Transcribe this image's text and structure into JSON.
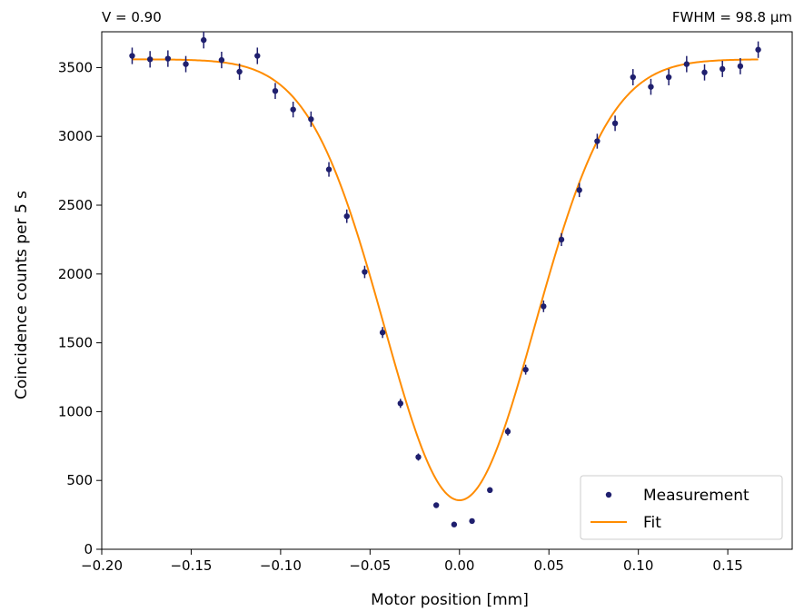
{
  "chart_data": {
    "type": "scatter",
    "title": "",
    "annotations": {
      "left": "V = 0.90",
      "right": "FWHM = 98.8 µm"
    },
    "xlabel": "Motor position [mm]",
    "ylabel": "Coincidence counts per 5 s",
    "xlim": [
      -0.2,
      0.186
    ],
    "ylim": [
      0,
      3760
    ],
    "xticks": [
      -0.2,
      -0.15,
      -0.1,
      -0.05,
      0.0,
      0.05,
      0.1,
      0.15
    ],
    "xtick_labels": [
      "−0.20",
      "−0.15",
      "−0.10",
      "−0.05",
      "0.00",
      "0.05",
      "0.10",
      "0.15"
    ],
    "yticks": [
      0,
      500,
      1000,
      1500,
      2000,
      2500,
      3000,
      3500
    ],
    "ytick_labels": [
      "0",
      "500",
      "1000",
      "1500",
      "2000",
      "2500",
      "3000",
      "3500"
    ],
    "grid": false,
    "legend_position": "bottom-right",
    "series": [
      {
        "name": "Measurement",
        "kind": "points-with-errorbars",
        "color": "#1f1f6e",
        "x": [
          -0.183,
          -0.173,
          -0.163,
          -0.153,
          -0.143,
          -0.133,
          -0.123,
          -0.113,
          -0.103,
          -0.093,
          -0.083,
          -0.073,
          -0.063,
          -0.053,
          -0.043,
          -0.033,
          -0.023,
          -0.013,
          -0.003,
          0.007,
          0.017,
          0.027,
          0.037,
          0.047,
          0.057,
          0.067,
          0.077,
          0.087,
          0.097,
          0.107,
          0.117,
          0.127,
          0.137,
          0.147,
          0.157,
          0.167
        ],
        "y": [
          3585,
          3560,
          3565,
          3525,
          3700,
          3555,
          3470,
          3585,
          3330,
          3195,
          3125,
          2760,
          2420,
          2015,
          1575,
          1060,
          670,
          320,
          180,
          205,
          430,
          855,
          1305,
          1765,
          2250,
          2610,
          2965,
          3095,
          3430,
          3360,
          3430,
          3525,
          3465,
          3490,
          3510,
          3630
        ],
        "yerr": [
          60,
          60,
          60,
          59,
          61,
          60,
          59,
          60,
          58,
          57,
          56,
          53,
          49,
          45,
          40,
          33,
          26,
          18,
          13,
          14,
          21,
          29,
          36,
          42,
          47,
          51,
          54,
          56,
          59,
          58,
          59,
          59,
          59,
          59,
          59,
          60
        ]
      },
      {
        "name": "Fit",
        "kind": "line",
        "color": "#ff8c00",
        "model": "gaussian-dip",
        "params": {
          "baseline": 3560,
          "visibility": 0.9,
          "center": 0.0,
          "fwhm_mm": 0.0988
        }
      }
    ]
  }
}
